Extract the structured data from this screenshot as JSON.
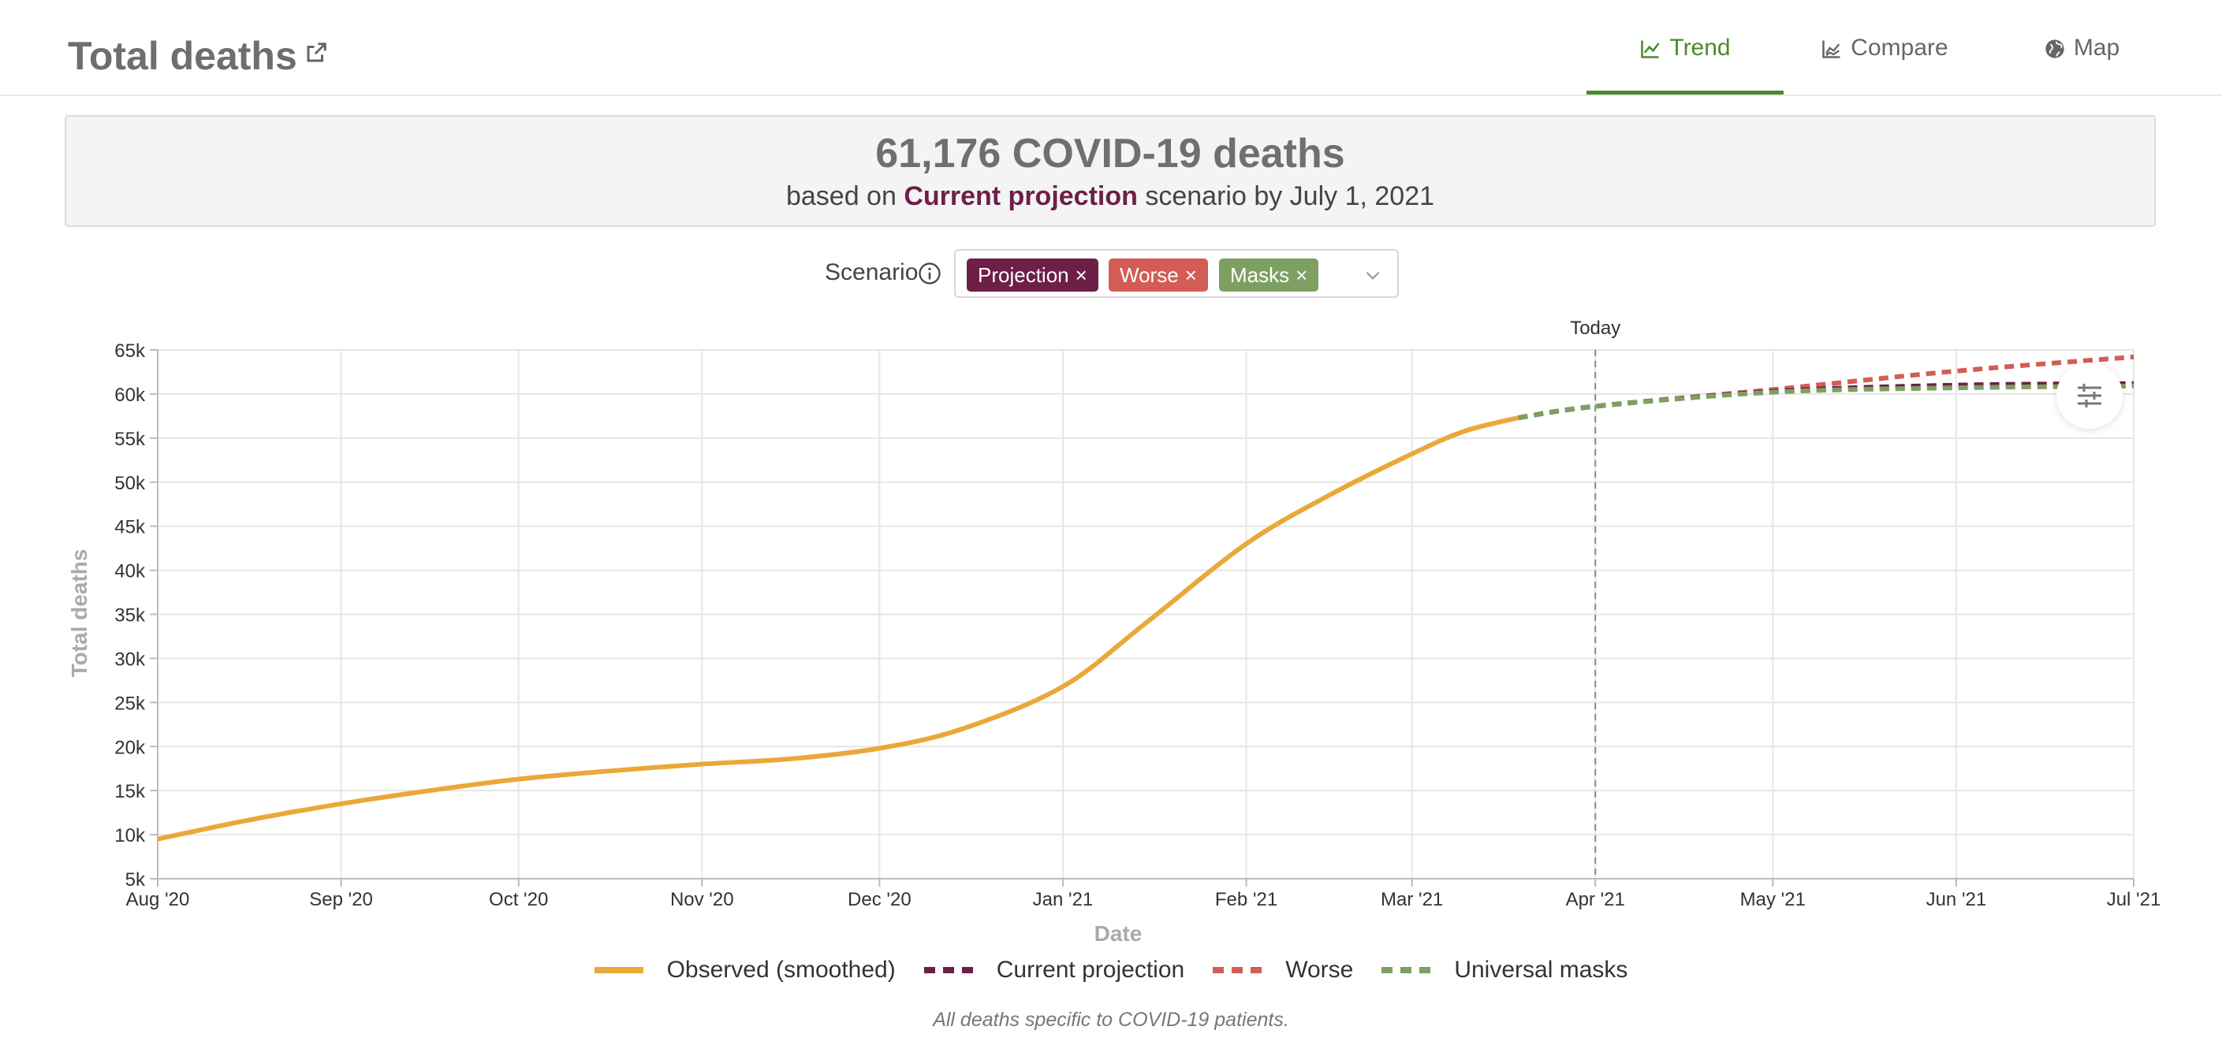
{
  "header": {
    "title": "Total deaths",
    "tabs": [
      {
        "label": "Trend",
        "active": true
      },
      {
        "label": "Compare",
        "active": false
      },
      {
        "label": "Map",
        "active": false
      }
    ]
  },
  "summary": {
    "headline": "61,176 COVID-19 deaths",
    "prefix": "based on",
    "scenario_name": "Current projection",
    "suffix": "scenario by July 1, 2021"
  },
  "scenario_selector": {
    "label": "Scenario",
    "chips": [
      {
        "label": "Projection",
        "color": "#6d1f48"
      },
      {
        "label": "Worse",
        "color": "#d35c56"
      },
      {
        "label": "Masks",
        "color": "#7da062"
      }
    ]
  },
  "footnote": "All deaths specific to COVID-19 patients.",
  "chart_data": {
    "type": "line",
    "xlabel": "Date",
    "ylabel": "Total deaths",
    "x_ticks": [
      "Aug '20",
      "Sep '20",
      "Oct '20",
      "Nov '20",
      "Dec '20",
      "Jan '21",
      "Feb '21",
      "Mar '21",
      "Apr '21",
      "May '21",
      "Jun '21",
      "Jul '21"
    ],
    "x_range": [
      "2020-08-01",
      "2021-07-01"
    ],
    "y_ticks": [
      "5k",
      "10k",
      "15k",
      "20k",
      "25k",
      "30k",
      "35k",
      "40k",
      "45k",
      "50k",
      "55k",
      "60k",
      "65k"
    ],
    "ylim": [
      5000,
      65000
    ],
    "grid": true,
    "annotation": {
      "label": "Today",
      "x": "2021-04-01"
    },
    "legend_position": "bottom",
    "series": [
      {
        "name": "Observed (smoothed)",
        "color": "#eaa83a",
        "style": "solid",
        "points": [
          [
            "2020-08-01",
            9500
          ],
          [
            "2020-08-16",
            11600
          ],
          [
            "2020-09-01",
            13500
          ],
          [
            "2020-09-16",
            15000
          ],
          [
            "2020-10-01",
            16300
          ],
          [
            "2020-10-16",
            17200
          ],
          [
            "2020-11-01",
            18000
          ],
          [
            "2020-11-16",
            18600
          ],
          [
            "2020-12-01",
            19800
          ],
          [
            "2020-12-15",
            22000
          ],
          [
            "2021-01-01",
            26800
          ],
          [
            "2021-01-15",
            34000
          ],
          [
            "2021-02-01",
            43000
          ],
          [
            "2021-02-15",
            48500
          ],
          [
            "2021-03-01",
            53200
          ],
          [
            "2021-03-10",
            55800
          ],
          [
            "2021-03-19",
            57300
          ]
        ]
      },
      {
        "name": "Current projection",
        "color": "#6d1f48",
        "style": "dashed",
        "points": [
          [
            "2021-03-19",
            57300
          ],
          [
            "2021-04-01",
            58600
          ],
          [
            "2021-05-01",
            60300
          ],
          [
            "2021-06-01",
            61000
          ],
          [
            "2021-07-01",
            61176
          ]
        ]
      },
      {
        "name": "Worse",
        "color": "#d35c56",
        "style": "dashed",
        "points": [
          [
            "2021-03-19",
            57300
          ],
          [
            "2021-04-01",
            58600
          ],
          [
            "2021-05-01",
            60500
          ],
          [
            "2021-06-01",
            62600
          ],
          [
            "2021-07-01",
            64200
          ]
        ]
      },
      {
        "name": "Universal masks",
        "color": "#7da062",
        "style": "dashed",
        "points": [
          [
            "2021-03-19",
            57300
          ],
          [
            "2021-04-01",
            58600
          ],
          [
            "2021-05-01",
            60200
          ],
          [
            "2021-06-01",
            60700
          ],
          [
            "2021-07-01",
            60900
          ]
        ]
      }
    ]
  }
}
